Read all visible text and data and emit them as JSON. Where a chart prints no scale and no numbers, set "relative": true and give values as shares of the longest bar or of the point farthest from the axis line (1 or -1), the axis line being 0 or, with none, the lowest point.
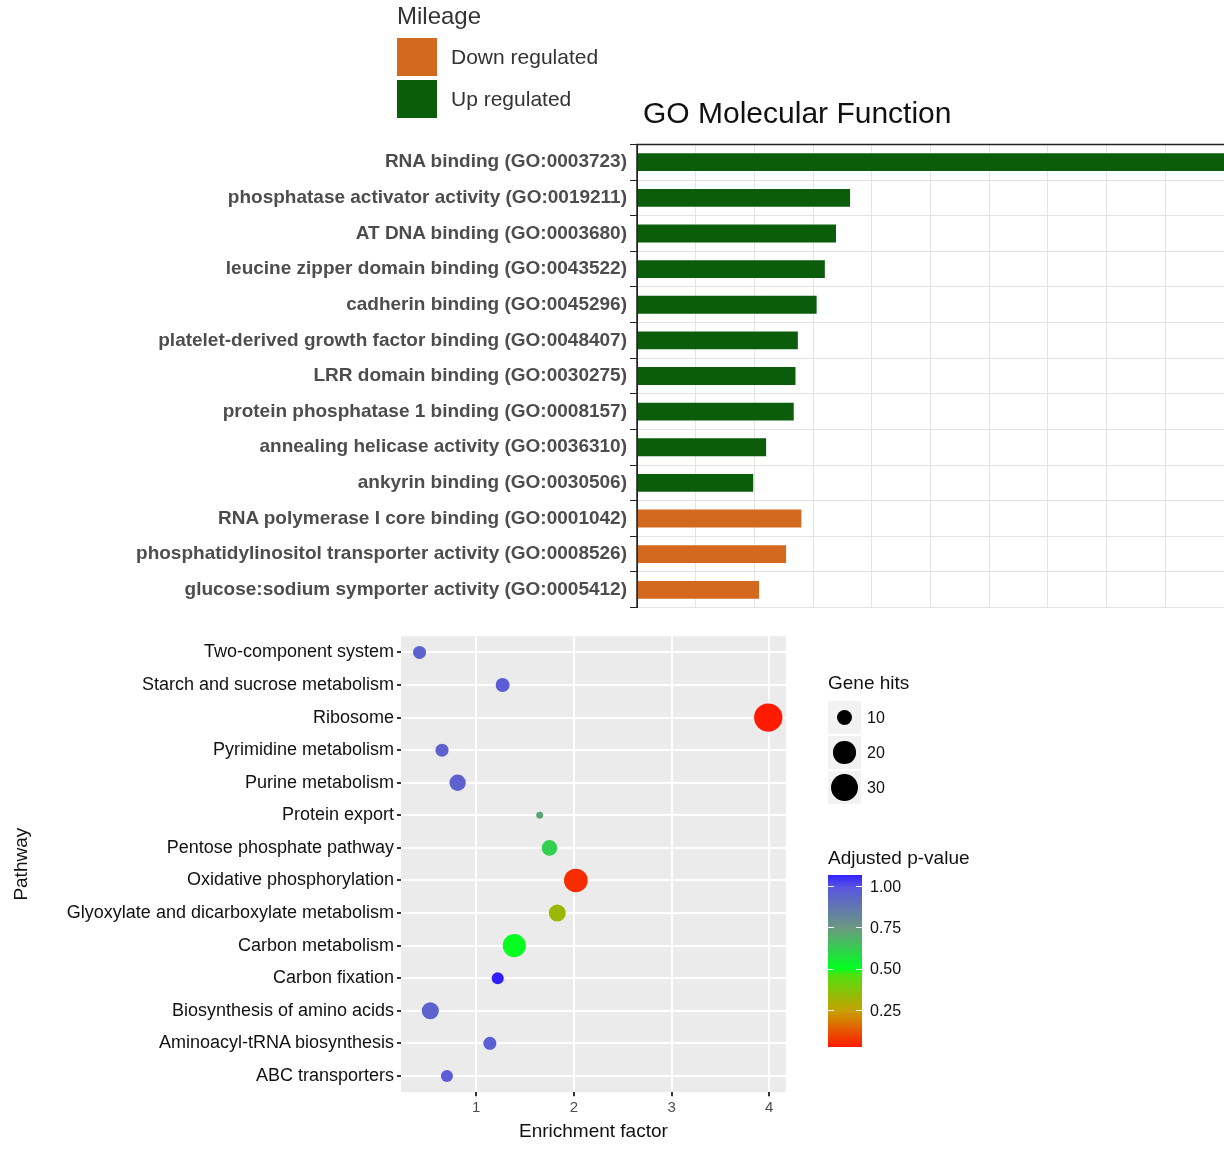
{
  "chart_data": [
    {
      "type": "bar",
      "title": "GO Molecular Function",
      "legend_title": "Mileage",
      "orientation": "horizontal",
      "stacked": true,
      "relative": true,
      "grid": true,
      "legend": "top left",
      "categories": [
        "RNA binding (GO:0003723)",
        "phosphatase activator activity (GO:0019211)",
        "AT DNA binding (GO:0003680)",
        "leucine zipper domain binding (GO:0043522)",
        "cadherin binding (GO:0045296)",
        "platelet-derived growth factor binding (GO:0048407)",
        "LRR domain binding (GO:0030275)",
        "protein phosphatase 1 binding (GO:0008157)",
        "annealing helicase activity (GO:0036310)",
        "ankyrin binding (GO:0030506)",
        "RNA polymerase I core binding (GO:0001042)",
        "phosphatidylinositol transporter activity (GO:0008526)",
        "glucose:sodium symporter activity (GO:0005412)"
      ],
      "series": [
        {
          "name": "Down regulated",
          "color": "#d2691e",
          "values": [
            null,
            null,
            null,
            null,
            null,
            null,
            null,
            null,
            null,
            null,
            0.28,
            0.254,
            0.208
          ]
        },
        {
          "name": "Up regulated",
          "color": "#0b5d0b",
          "values": [
            1,
            0.363,
            0.339,
            0.32,
            0.306,
            0.274,
            0.27,
            0.267,
            0.22,
            0.198,
            null,
            null,
            null
          ]
        }
      ]
    },
    {
      "type": "bubble",
      "orientation": "horizontal",
      "xlabel": "Enrichment factor",
      "ylabel": "Pathway",
      "legend_title": "Gene hits",
      "clabel": "Adjusted p-value",
      "grid": true,
      "categories": [
        "Two-component system",
        "Starch and sucrose metabolism",
        "Ribosome",
        "Pyrimidine metabolism",
        "Purine metabolism",
        "Protein export",
        "Pentose phosphate pathway",
        "Oxidative phosphorylation",
        "Glyoxylate and dicarboxylate metabolism",
        "Carbon metabolism",
        "Carbon fixation",
        "Biosynthesis of amino acids",
        "Aminoacyl-tRNA biosynthesis",
        "ABC transporters"
      ],
      "values": [
        0.42,
        1.27,
        3.99,
        0.65,
        0.81,
        1.65,
        1.75,
        2.02,
        1.83,
        1.39,
        1.22,
        0.53,
        1.14,
        0.7
      ],
      "sizes": [
        7,
        8,
        33,
        7,
        11,
        2,
        10,
        23,
        12,
        22,
        6,
        12,
        7,
        6
      ],
      "size_legend": [
        10,
        20,
        30
      ],
      "cvalues": [
        0.95,
        0.97,
        0.03,
        0.95,
        0.95,
        0.72,
        0.62,
        0.06,
        0.33,
        0.5,
        1.07,
        0.95,
        0.96,
        0.97
      ],
      "clim": [
        0.03,
        1.07
      ],
      "cticks": [
        {
          "value": 1,
          "label": "1.00"
        },
        {
          "value": 0.75,
          "label": "0.75"
        },
        {
          "value": 0.5,
          "label": "0.50"
        },
        {
          "value": 0.25,
          "label": "0.25"
        }
      ],
      "xlim": [
        0.23,
        4.17
      ],
      "xticks": [
        1,
        2,
        3,
        4
      ]
    }
  ]
}
